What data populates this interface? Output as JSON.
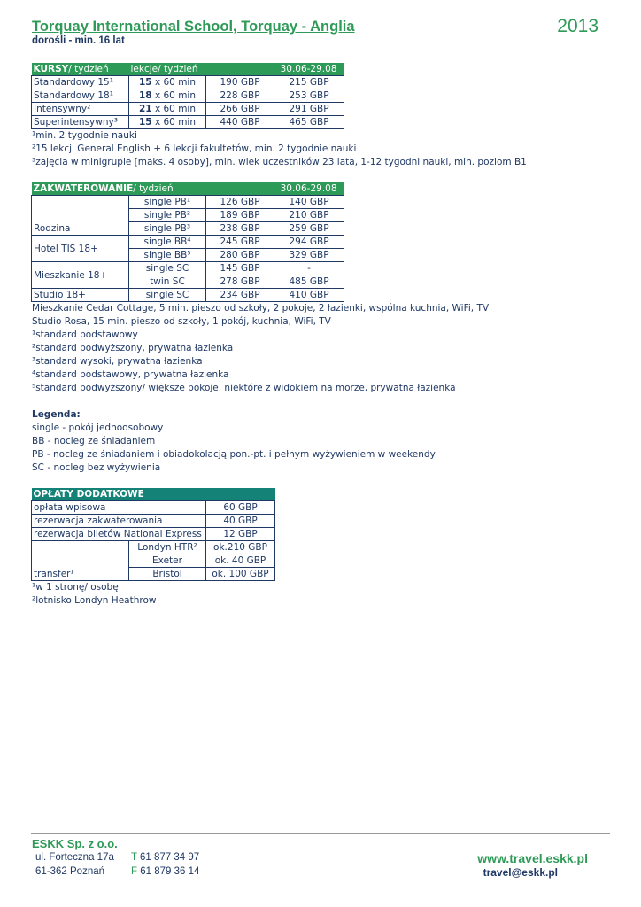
{
  "header": {
    "title": "Torquay International School, Torquay - Anglia",
    "year": "2013",
    "subtitle": "dorośli - min. 16 lat"
  },
  "courses": {
    "head_bold": "KURSY",
    "head_rest": "/ tydzień",
    "head_col2": "lekcje/ tydzień",
    "head_period": "30.06-29.08",
    "rows": [
      {
        "name": "Standardowy 15¹",
        "lessons": "15",
        "unit": " x 60 min",
        "p1": "190 GBP",
        "p2": "215 GBP"
      },
      {
        "name": "Standardowy 18¹",
        "lessons": "18",
        "unit": " x 60 min",
        "p1": "228 GBP",
        "p2": "253 GBP"
      },
      {
        "name": "Intensywny²",
        "lessons": "21",
        "unit": " x 60 min",
        "p1": "266 GBP",
        "p2": "291 GBP"
      },
      {
        "name": "Superintensywny³",
        "lessons": "15",
        "unit": " x 60 min",
        "p1": "440 GBP",
        "p2": "465 GBP"
      }
    ],
    "notes": [
      "¹min. 2 tygodnie nauki",
      "²15 lekcji General English + 6 lekcji fakultetów, min. 2 tygodnie nauki",
      "³zajęcia w minigrupie [maks. 4 osoby], min. wiek uczestników 23 lata, 1-12 tygodni nauki, min. poziom B1"
    ]
  },
  "accommodation": {
    "head_bold": "ZAKWATEROWANIE",
    "head_rest": "/ tydzień",
    "head_period": "30.06-29.08",
    "groups": [
      "Rodzina",
      "Hotel TIS 18+",
      "Mieszkanie 18+",
      "Studio 18+"
    ],
    "rows": [
      {
        "type": "single PB¹",
        "p1": "126 GBP",
        "p2": "140 GBP"
      },
      {
        "type": "single PB²",
        "p1": "189 GBP",
        "p2": "210 GBP"
      },
      {
        "type": "single PB³",
        "p1": "238 GBP",
        "p2": "259 GBP"
      },
      {
        "type": "single BB⁴",
        "p1": "245 GBP",
        "p2": "294 GBP"
      },
      {
        "type": "single BB⁵",
        "p1": "280 GBP",
        "p2": "329 GBP"
      },
      {
        "type": "single SC",
        "p1": "145 GBP",
        "p2": "-"
      },
      {
        "type": "twin SC",
        "p1": "278 GBP",
        "p2": "485 GBP"
      },
      {
        "type": "single SC",
        "p1": "234 GBP",
        "p2": "410 GBP"
      }
    ],
    "notes": [
      "Mieszkanie Cedar Cottage, 5 min. pieszo od szkoły, 2 pokoje, 2 łazienki, wspólna kuchnia, WiFi, TV",
      "Studio Rosa, 15 min. pieszo od szkoły, 1 pokój, kuchnia, WiFi, TV",
      "¹standard podstawowy",
      "²standard podwyższony, prywatna łazienka",
      "³standard wysoki, prywatna łazienka",
      "⁴standard podstawowy, prywatna łazienka",
      "⁵standard podwyższony/ większe pokoje, niektóre z widokiem na morze, prywatna łazienka"
    ]
  },
  "legend": {
    "title": "Legenda:",
    "items": [
      "single - pokój jednoosobowy",
      "BB - nocleg ze śniadaniem",
      "PB - nocleg ze śniadaniem i obiadokolacją pon.-pt. i pełnym wyżywieniem w weekendy",
      "SC - nocleg bez wyżywienia"
    ]
  },
  "fees": {
    "head": "OPŁATY DODATKOWE",
    "rows": [
      {
        "name": "opłata wpisowa",
        "price": "60 GBP"
      },
      {
        "name": "rezerwacja zakwaterowania",
        "price": "40 GBP"
      },
      {
        "name": "rezerwacja biletów National Express",
        "price": "12 GBP"
      }
    ],
    "transfer_label": "transfer¹",
    "transfers": [
      {
        "dest": "Londyn HTR²",
        "price": "ok.210 GBP"
      },
      {
        "dest": "Exeter",
        "price": "ok. 40 GBP"
      },
      {
        "dest": "Bristol",
        "price": "ok. 100 GBP"
      }
    ],
    "notes": [
      "¹w 1 stronę/ osobę",
      "²lotnisko Londyn Heathrow"
    ]
  },
  "footer": {
    "company": "ESKK Sp. z o.o.",
    "street": "ul. Forteczna 17a",
    "city": "61-362 Poznań",
    "tel_prefix": "T",
    "tel": " 61 877 34 97",
    "fax_prefix": "F",
    "fax": " 61 879 36 14",
    "website": "www.travel.eskk.pl",
    "email": "travel@eskk.pl"
  },
  "colors": {
    "green": "#2e9a57",
    "teal": "#148276",
    "text": "#1f3864"
  }
}
